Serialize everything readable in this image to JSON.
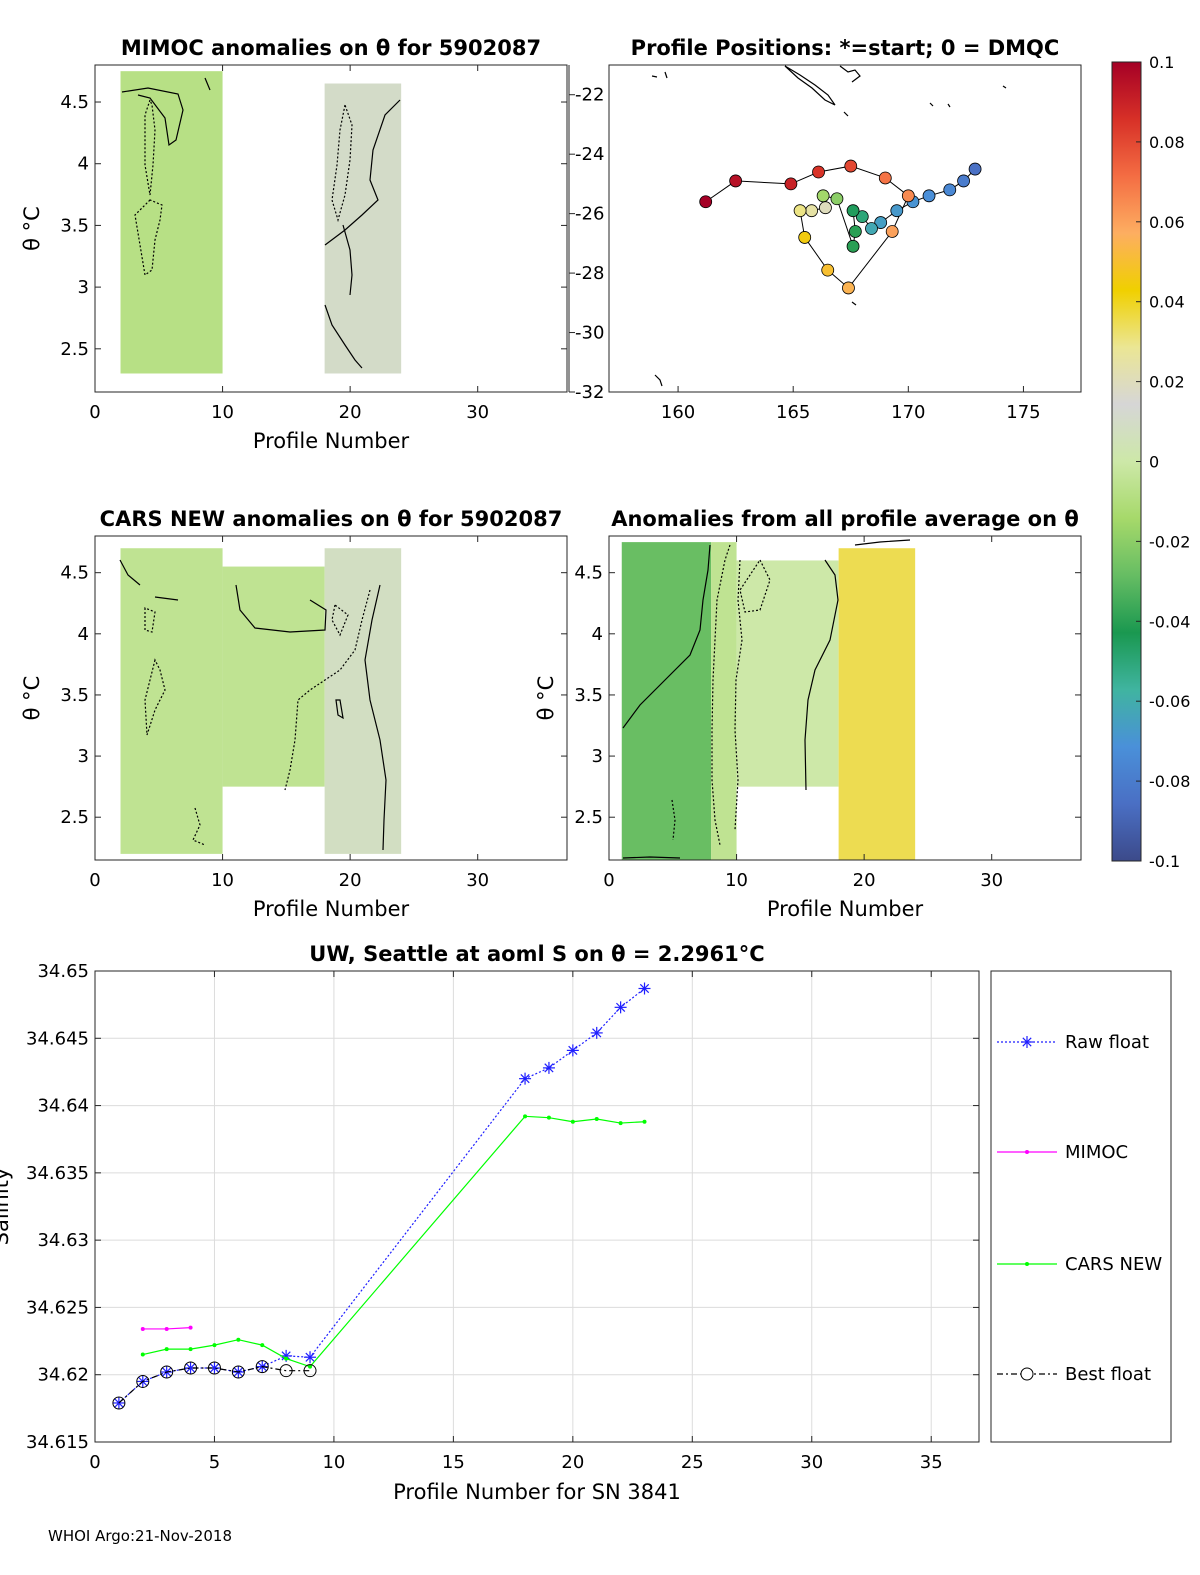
{
  "footer": "WHOI Argo:21-Nov-2018",
  "colors": {
    "anomaly_gray": "#d6d6d6",
    "raw_float": "#1f1fff",
    "mimoc": "#ff00ff",
    "cars_new": "#00ff00",
    "best_float": "#000000"
  },
  "chart_data": [
    {
      "id": "mimoc_anom",
      "type": "heatmap",
      "title": "MIMOC anomalies on θ  for 5902087",
      "xlabel": "Profile Number",
      "ylabel": "θ °C",
      "xlim": [
        0,
        37
      ],
      "ylim": [
        2.15,
        4.8
      ],
      "xticks": [
        0,
        10,
        20,
        30
      ],
      "yticks": [
        2.5,
        3,
        3.5,
        4,
        4.5
      ],
      "cells": [
        {
          "x": [
            2,
            10
          ],
          "y": [
            2.3,
            4.75
          ],
          "value": -0.008
        },
        {
          "x": [
            18,
            24
          ],
          "y": [
            2.3,
            4.65
          ],
          "value": 0.01
        }
      ]
    },
    {
      "id": "positions",
      "type": "scatter",
      "title": "Profile Positions: *=start; 0 = DMQC",
      "xlim": [
        157,
        177.5
      ],
      "ylim": [
        -32,
        -21
      ],
      "xticks": [
        160,
        165,
        170,
        175
      ],
      "yticks": [
        -22,
        -24,
        -26,
        -28,
        -30,
        -32
      ],
      "track": [
        {
          "lon": 172.9,
          "lat": -24.5,
          "value": -0.085
        },
        {
          "lon": 172.4,
          "lat": -24.9,
          "value": -0.08
        },
        {
          "lon": 171.8,
          "lat": -25.2,
          "value": -0.075
        },
        {
          "lon": 170.9,
          "lat": -25.4,
          "value": -0.072
        },
        {
          "lon": 170.2,
          "lat": -25.6,
          "value": -0.07
        },
        {
          "lon": 169.5,
          "lat": -25.9,
          "value": -0.068
        },
        {
          "lon": 168.8,
          "lat": -26.3,
          "value": -0.066
        },
        {
          "lon": 168.4,
          "lat": -26.5,
          "value": -0.062
        },
        {
          "lon": 168.0,
          "lat": -26.1,
          "value": -0.05
        },
        {
          "lon": 167.6,
          "lat": -25.9,
          "value": -0.045
        },
        {
          "lon": 167.7,
          "lat": -26.6,
          "value": -0.04
        },
        {
          "lon": 167.6,
          "lat": -27.1,
          "value": -0.04
        },
        {
          "lon": 166.9,
          "lat": -25.5,
          "value": -0.02
        },
        {
          "lon": 166.3,
          "lat": -25.4,
          "value": -0.015
        },
        {
          "lon": 166.4,
          "lat": -25.8,
          "value": 0.02
        },
        {
          "lon": 165.8,
          "lat": -25.9,
          "value": 0.025
        },
        {
          "lon": 165.3,
          "lat": -25.9,
          "value": 0.03
        },
        {
          "lon": 165.5,
          "lat": -26.8,
          "value": 0.045
        },
        {
          "lon": 166.5,
          "lat": -27.9,
          "value": 0.05
        },
        {
          "lon": 167.4,
          "lat": -28.5,
          "value": 0.055
        },
        {
          "lon": 169.3,
          "lat": -26.6,
          "value": 0.06
        },
        {
          "lon": 170.0,
          "lat": -25.4,
          "value": 0.065
        },
        {
          "lon": 169.0,
          "lat": -24.8,
          "value": 0.07
        },
        {
          "lon": 167.5,
          "lat": -24.4,
          "value": 0.08
        },
        {
          "lon": 166.1,
          "lat": -24.6,
          "value": 0.085
        },
        {
          "lon": 164.9,
          "lat": -25.0,
          "value": 0.09
        },
        {
          "lon": 162.5,
          "lat": -24.9,
          "value": 0.095
        },
        {
          "lon": 161.2,
          "lat": -25.6,
          "value": 0.1
        }
      ]
    },
    {
      "id": "cars_anom",
      "type": "heatmap",
      "title": "CARS NEW anomalies on θ for 5902087",
      "xlabel": "Profile Number",
      "ylabel": "θ °C",
      "xlim": [
        0,
        37
      ],
      "ylim": [
        2.15,
        4.8
      ],
      "xticks": [
        0,
        10,
        20,
        30
      ],
      "yticks": [
        2.5,
        3,
        3.5,
        4,
        4.5
      ],
      "cells": [
        {
          "x": [
            2,
            10
          ],
          "y": [
            2.2,
            4.7
          ],
          "value": -0.005
        },
        {
          "x": [
            10,
            18
          ],
          "y": [
            2.75,
            4.55
          ],
          "value": -0.005
        },
        {
          "x": [
            18,
            24
          ],
          "y": [
            2.2,
            4.7
          ],
          "value": 0.008
        }
      ]
    },
    {
      "id": "avg_anom",
      "type": "heatmap",
      "title": "Anomalies from all profile average on θ",
      "xlabel": "Profile Number",
      "ylabel": "θ °C",
      "xlim": [
        0,
        37
      ],
      "ylim": [
        2.15,
        4.8
      ],
      "xticks": [
        0,
        10,
        20,
        30
      ],
      "yticks": [
        2.5,
        3,
        3.5,
        4,
        4.5
      ],
      "cells": [
        {
          "x": [
            1,
            8
          ],
          "y": [
            2.15,
            4.75
          ],
          "value": -0.028
        },
        {
          "x": [
            8,
            10
          ],
          "y": [
            2.15,
            4.75
          ],
          "value": -0.005
        },
        {
          "x": [
            10,
            18
          ],
          "y": [
            2.75,
            4.6
          ],
          "value": 0
        },
        {
          "x": [
            18,
            24
          ],
          "y": [
            2.15,
            4.7
          ],
          "value": 0.035
        }
      ]
    },
    {
      "id": "colorbar",
      "type": "heatmap",
      "clim": [
        -0.1,
        0.1
      ],
      "ticks": [
        "0.1",
        "0.08",
        "0.06",
        "0.04",
        "0.02",
        "0",
        "-0.02",
        "-0.04",
        "-0.06",
        "-0.08",
        "-0.1"
      ],
      "stops": [
        "#a50026",
        "#d73027",
        "#f46d43",
        "#fdae61",
        "#f0d000",
        "#ebe694",
        "#d6d6d6",
        "#cde8a8",
        "#a6d96a",
        "#66bd63",
        "#1a9850",
        "#40b4a0",
        "#4a90d9",
        "#4a6fc4",
        "#3c4a8a"
      ]
    },
    {
      "id": "salinity",
      "type": "line",
      "title": "UW, Seattle at aoml S on θ = 2.2961°C",
      "xlabel": "Profile Number for SN 3841",
      "ylabel": "Salinity",
      "xlim": [
        0,
        37
      ],
      "ylim": [
        34.615,
        34.65
      ],
      "xticks": [
        0,
        5,
        10,
        15,
        20,
        25,
        30,
        35
      ],
      "yticks": [
        "34.615",
        "34.62",
        "34.625",
        "34.63",
        "34.635",
        "34.64",
        "34.645",
        "34.65"
      ],
      "series": [
        {
          "name": "Raw float",
          "x": [
            1,
            2,
            3,
            4,
            5,
            6,
            7,
            8,
            9,
            18,
            19,
            20,
            21,
            22,
            23
          ],
          "y": [
            34.6179,
            34.6195,
            34.6202,
            34.6205,
            34.6205,
            34.6202,
            34.6206,
            34.6214,
            34.6213,
            34.642,
            34.6428,
            34.6441,
            34.6454,
            34.6473,
            34.6487
          ]
        },
        {
          "name": "MIMOC",
          "x": [
            2,
            3,
            4
          ],
          "y": [
            34.6234,
            34.6234,
            34.6235
          ]
        },
        {
          "name": "CARS NEW",
          "x": [
            2,
            3,
            4,
            5,
            6,
            7,
            8,
            9,
            18,
            19,
            20,
            21,
            22,
            23
          ],
          "y": [
            34.6215,
            34.6219,
            34.6219,
            34.6222,
            34.6226,
            34.6222,
            34.6212,
            34.6206,
            34.6392,
            34.6391,
            34.6388,
            34.639,
            34.6387,
            34.6388
          ]
        },
        {
          "name": "Best float",
          "x": [
            1,
            2,
            3,
            4,
            5,
            6,
            7,
            8,
            9
          ],
          "y": [
            34.6179,
            34.6195,
            34.6202,
            34.6205,
            34.6205,
            34.6202,
            34.6206,
            34.6203,
            34.6203
          ]
        }
      ]
    }
  ]
}
